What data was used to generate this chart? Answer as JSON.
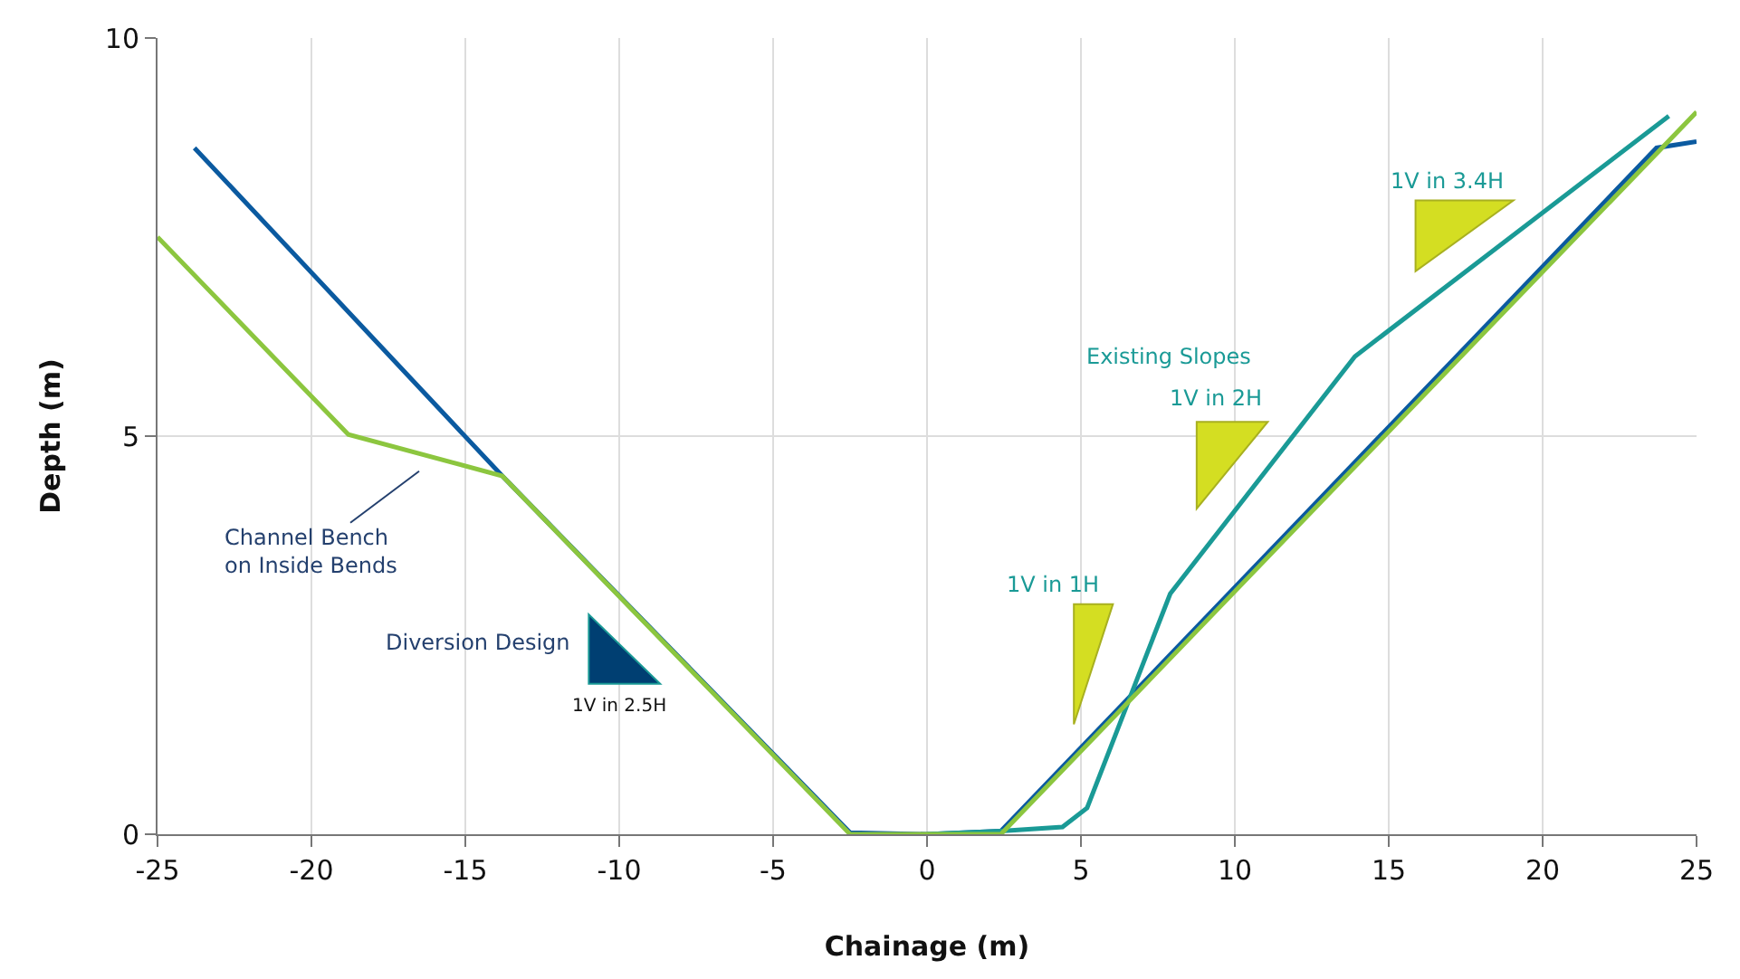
{
  "chart_data": {
    "type": "line",
    "xlabel": "Chainage (m)",
    "ylabel": "Depth (m)",
    "xlim": [
      -25,
      25
    ],
    "xticks": [
      -25,
      -20,
      -15,
      -10,
      -5,
      0,
      5,
      10,
      15,
      20,
      25
    ],
    "ylim": [
      0,
      10
    ],
    "yticks": [
      0,
      5,
      10
    ],
    "grid": true,
    "marker": "none",
    "line_style": "solid",
    "series": [
      {
        "color": "#0b5aa0",
        "x": [
          -23.8,
          -13.8,
          -2.5,
          0,
          2.4,
          23.7,
          25
        ],
        "values": [
          8.62,
          4.5,
          0.02,
          0,
          0.04,
          8.62,
          8.7
        ]
      },
      {
        "color": "#1a9a96",
        "x": [
          0,
          2.4,
          4.4,
          5.2,
          7.9,
          13.9,
          24.1
        ],
        "values": [
          0,
          0.04,
          0.09,
          0.33,
          3.02,
          6.0,
          9.02
        ]
      },
      {
        "color": "#8cc63f",
        "x": [
          -25,
          -18.8,
          -13.8,
          -2.5,
          0,
          2.4,
          25
        ],
        "values": [
          7.5,
          5.02,
          4.5,
          0,
          0,
          0,
          9.07
        ]
      }
    ],
    "annotations": [
      "Channel Bench\non Inside Bends",
      "Diversion Design",
      "1V in 2.5H",
      "Existing Slopes",
      "1V in 2H",
      "1V in 1H",
      "1V in 3.4H"
    ]
  }
}
